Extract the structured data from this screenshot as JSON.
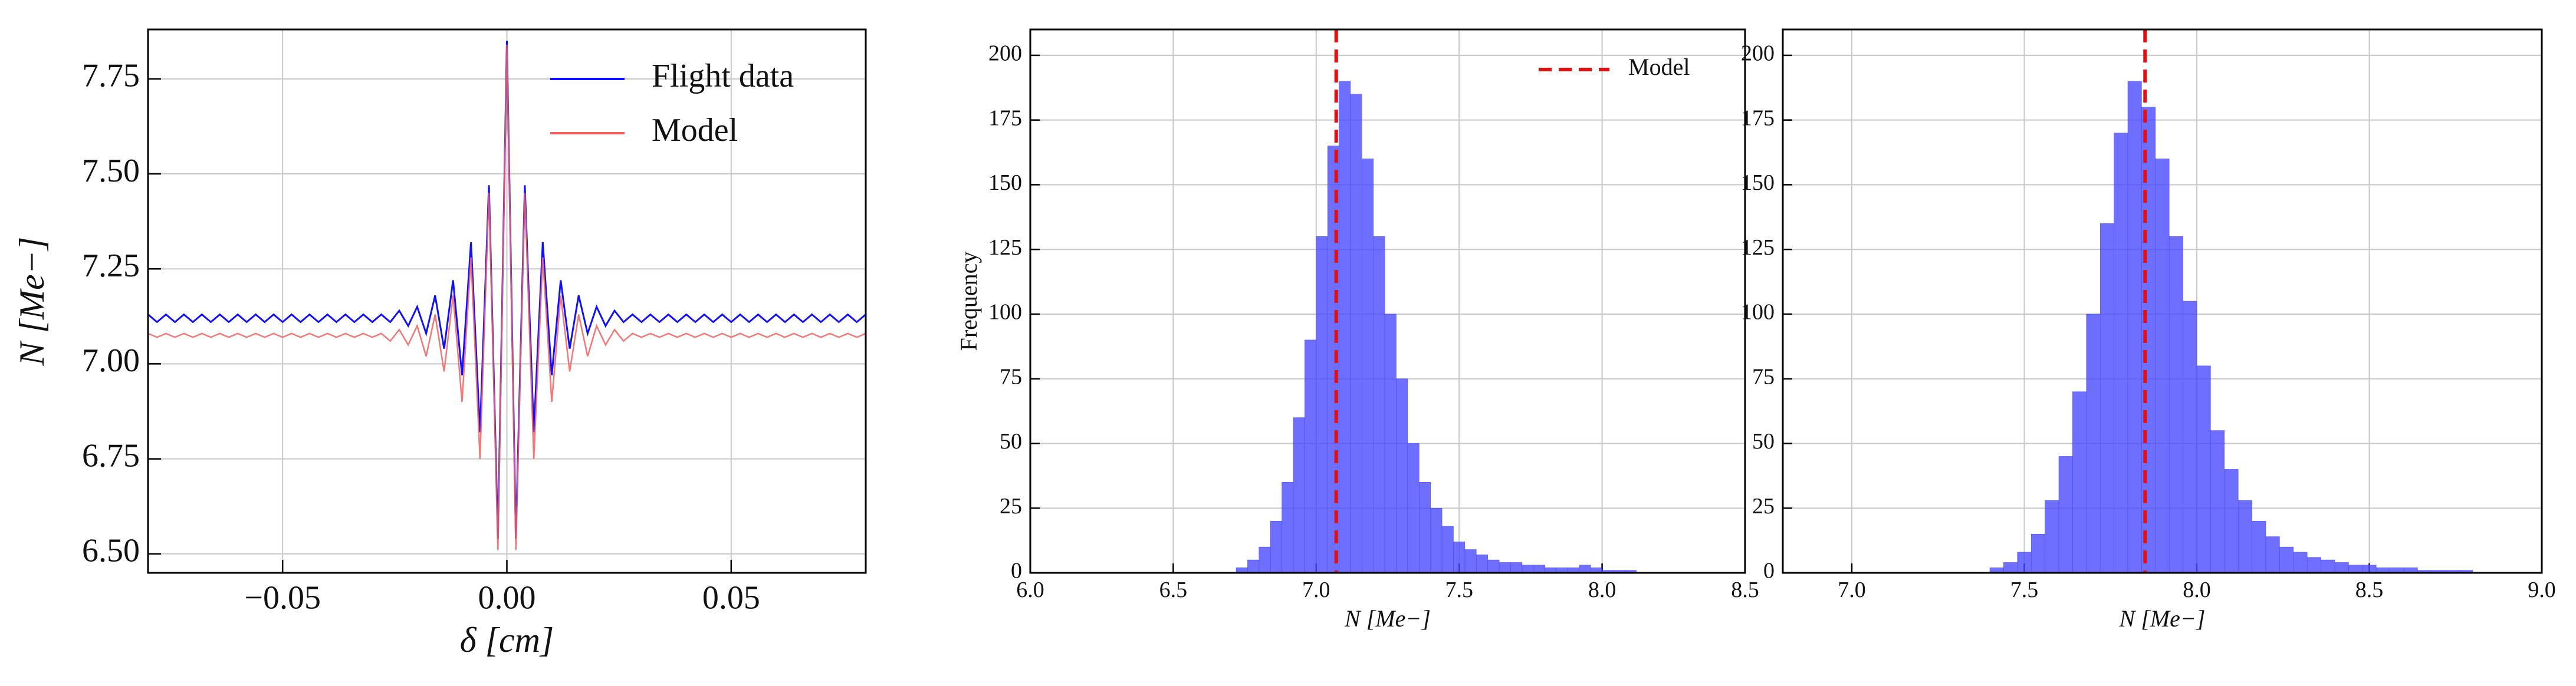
{
  "chart_data": [
    {
      "type": "line",
      "xlabel": "δ [cm]",
      "ylabel": "N [Me−]",
      "xlim": [
        -0.08,
        0.08
      ],
      "ylim": [
        6.45,
        7.88
      ],
      "xticks": [
        {
          "value": -0.05,
          "label": "−0.05"
        },
        {
          "value": 0,
          "label": "0.00"
        },
        0.05
      ],
      "yticks": [
        {
          "value": 6.5,
          "label": "6.50"
        },
        6.75,
        {
          "value": 7,
          "label": "7.00"
        },
        7.25,
        {
          "value": 7.5,
          "label": "7.50"
        },
        7.75
      ],
      "grid": true,
      "legend": "upper right",
      "x": [
        -0.08,
        -0.078,
        -0.076,
        -0.074,
        -0.072,
        -0.07,
        -0.068,
        -0.066,
        -0.064,
        -0.062,
        -0.06,
        -0.058,
        -0.056,
        -0.054,
        -0.052,
        -0.05,
        -0.048,
        -0.046,
        -0.044,
        -0.042,
        -0.04,
        -0.038,
        -0.036,
        -0.034,
        -0.032,
        -0.03,
        -0.028,
        -0.026,
        -0.024,
        -0.022,
        -0.02,
        -0.018,
        -0.016,
        -0.014,
        -0.012,
        -0.01,
        -0.008,
        -0.006,
        -0.004,
        -0.002,
        0,
        0.002,
        0.004,
        0.006,
        0.008,
        0.01,
        0.012,
        0.014,
        0.016,
        0.018,
        0.02,
        0.022,
        0.024,
        0.026,
        0.028,
        0.03,
        0.032,
        0.034,
        0.036,
        0.038,
        0.04,
        0.042,
        0.044,
        0.046,
        0.048,
        0.05,
        0.052,
        0.054,
        0.056,
        0.058,
        0.06,
        0.062,
        0.064,
        0.066,
        0.068,
        0.07,
        0.072,
        0.074,
        0.076,
        0.078,
        0.08
      ],
      "series": [
        {
          "name": "Flight data",
          "color": "#1010ff",
          "values": [
            7.13,
            7.11,
            7.13,
            7.11,
            7.13,
            7.11,
            7.13,
            7.11,
            7.13,
            7.11,
            7.13,
            7.11,
            7.13,
            7.11,
            7.13,
            7.11,
            7.13,
            7.11,
            7.13,
            7.11,
            7.13,
            7.11,
            7.13,
            7.11,
            7.13,
            7.11,
            7.13,
            7.11,
            7.14,
            7.1,
            7.15,
            7.08,
            7.18,
            7.04,
            7.22,
            6.97,
            7.32,
            6.82,
            7.47,
            6.54,
            7.85,
            6.54,
            7.47,
            6.82,
            7.32,
            6.97,
            7.22,
            7.04,
            7.18,
            7.08,
            7.15,
            7.1,
            7.14,
            7.11,
            7.13,
            7.11,
            7.13,
            7.11,
            7.13,
            7.11,
            7.13,
            7.11,
            7.13,
            7.11,
            7.13,
            7.11,
            7.13,
            7.11,
            7.13,
            7.11,
            7.13,
            7.11,
            7.13,
            7.11,
            7.13,
            7.11,
            7.13,
            7.11,
            7.13,
            7.11,
            7.13
          ]
        },
        {
          "name": "Model",
          "color": "#f06060",
          "values": [
            7.08,
            7.07,
            7.08,
            7.07,
            7.08,
            7.07,
            7.08,
            7.07,
            7.08,
            7.07,
            7.08,
            7.07,
            7.08,
            7.07,
            7.08,
            7.07,
            7.08,
            7.07,
            7.08,
            7.07,
            7.08,
            7.07,
            7.08,
            7.07,
            7.08,
            7.07,
            7.08,
            7.06,
            7.09,
            7.05,
            7.1,
            7.02,
            7.13,
            6.98,
            7.18,
            6.9,
            7.28,
            6.75,
            7.45,
            6.51,
            7.84,
            6.51,
            7.45,
            6.75,
            7.28,
            6.9,
            7.18,
            6.98,
            7.13,
            7.02,
            7.1,
            7.05,
            7.09,
            7.06,
            7.08,
            7.07,
            7.08,
            7.07,
            7.08,
            7.07,
            7.08,
            7.07,
            7.08,
            7.07,
            7.08,
            7.07,
            7.08,
            7.07,
            7.08,
            7.07,
            7.08,
            7.07,
            7.08,
            7.07,
            7.08,
            7.07,
            7.08,
            7.07,
            7.08,
            7.07,
            7.08
          ]
        }
      ]
    },
    {
      "type": "hist",
      "xlabel": "N [Me−]",
      "ylabel": "Frequency",
      "xlim": [
        6.0,
        8.5
      ],
      "ylim": [
        0,
        210
      ],
      "xticks": [
        {
          "value": 6,
          "label": "6.0"
        },
        6.5,
        {
          "value": 7,
          "label": "7.0"
        },
        7.5,
        {
          "value": 8,
          "label": "8.0"
        },
        8.5
      ],
      "yticks": [
        0,
        25,
        50,
        75,
        100,
        125,
        150,
        175,
        200
      ],
      "grid": true,
      "legend": "upper right",
      "color": "#4a4aff",
      "bins": [
        6.72,
        6.76,
        6.8,
        6.84,
        6.88,
        6.92,
        6.96,
        7.0,
        7.04,
        7.08,
        7.12,
        7.16,
        7.2,
        7.24,
        7.28,
        7.32,
        7.36,
        7.4,
        7.44,
        7.48,
        7.52,
        7.56,
        7.6,
        7.64,
        7.68,
        7.72,
        7.76,
        7.8,
        7.84,
        7.88,
        7.92,
        7.96,
        8.0,
        8.04,
        8.08,
        8.12
      ],
      "counts": [
        2,
        5,
        10,
        20,
        35,
        60,
        90,
        130,
        165,
        190,
        185,
        160,
        130,
        100,
        75,
        50,
        35,
        25,
        18,
        12,
        9,
        7,
        5,
        4,
        4,
        3,
        3,
        2,
        2,
        2,
        3,
        2,
        1,
        1,
        1
      ],
      "model_line": {
        "name": "Model",
        "value": 7.07,
        "color": "#e01010"
      }
    },
    {
      "type": "hist",
      "xlabel": "N [Me−]",
      "xlim": [
        6.8,
        9.0
      ],
      "ylim": [
        0,
        210
      ],
      "xticks": [
        {
          "value": 7,
          "label": "7.0"
        },
        7.5,
        {
          "value": 8,
          "label": "8.0"
        },
        8.5,
        {
          "value": 9,
          "label": "9.0"
        }
      ],
      "yticks": [
        0,
        25,
        50,
        75,
        100,
        125,
        150,
        175,
        200
      ],
      "grid": true,
      "color": "#4a4aff",
      "bins": [
        7.4,
        7.44,
        7.48,
        7.52,
        7.56,
        7.6,
        7.64,
        7.68,
        7.72,
        7.76,
        7.8,
        7.84,
        7.88,
        7.92,
        7.96,
        8.0,
        8.04,
        8.08,
        8.12,
        8.16,
        8.2,
        8.24,
        8.28,
        8.32,
        8.36,
        8.4,
        8.44,
        8.48,
        8.52,
        8.56,
        8.6,
        8.64,
        8.68,
        8.72,
        8.76,
        8.8
      ],
      "counts": [
        2,
        4,
        8,
        15,
        28,
        45,
        70,
        100,
        135,
        170,
        190,
        180,
        160,
        130,
        105,
        80,
        55,
        40,
        28,
        20,
        14,
        10,
        8,
        6,
        5,
        4,
        3,
        3,
        2,
        2,
        2,
        1,
        1,
        1,
        1
      ],
      "model_line": {
        "value": 7.85,
        "color": "#e01010"
      }
    }
  ]
}
